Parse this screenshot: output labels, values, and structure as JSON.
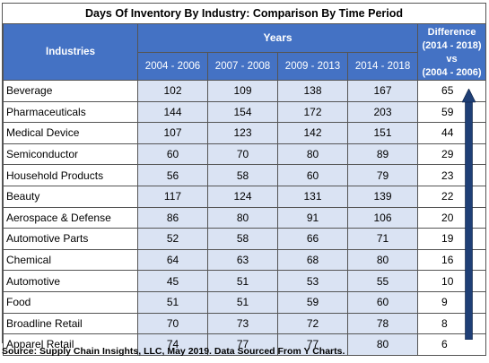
{
  "title": "Days Of Inventory By Industry: Comparison By Time Period",
  "header": {
    "industries_label": "Industries",
    "years_label": "Years",
    "periods": [
      "2004 - 2006",
      "2007 - 2008",
      "2009 - 2013",
      "2014 - 2018"
    ],
    "difference_lines": [
      "Difference",
      "(2014 - 2018)",
      "vs",
      "(2004 - 2006)"
    ]
  },
  "rows": [
    {
      "industry": "Beverage",
      "values": [
        "102",
        "109",
        "138",
        "167"
      ],
      "difference": "65"
    },
    {
      "industry": "Pharmaceuticals",
      "values": [
        "144",
        "154",
        "172",
        "203"
      ],
      "difference": "59"
    },
    {
      "industry": "Medical Device",
      "values": [
        "107",
        "123",
        "142",
        "151"
      ],
      "difference": "44"
    },
    {
      "industry": "Semiconductor",
      "values": [
        "60",
        "70",
        "80",
        "89"
      ],
      "difference": "29"
    },
    {
      "industry": "Household Products",
      "values": [
        "56",
        "58",
        "60",
        "79"
      ],
      "difference": "23"
    },
    {
      "industry": "Beauty",
      "values": [
        "117",
        "124",
        "131",
        "139"
      ],
      "difference": "22"
    },
    {
      "industry": "Aerospace & Defense",
      "values": [
        "86",
        "80",
        "91",
        "106"
      ],
      "difference": "20"
    },
    {
      "industry": "Automotive Parts",
      "values": [
        "52",
        "58",
        "66",
        "71"
      ],
      "difference": "19"
    },
    {
      "industry": "Chemical",
      "values": [
        "64",
        "63",
        "68",
        "80"
      ],
      "difference": "16"
    },
    {
      "industry": "Automotive",
      "values": [
        "45",
        "51",
        "53",
        "55"
      ],
      "difference": "10"
    },
    {
      "industry": "Food",
      "values": [
        "51",
        "51",
        "59",
        "60"
      ],
      "difference": "9"
    },
    {
      "industry": "Broadline Retail",
      "values": [
        "70",
        "73",
        "72",
        "78"
      ],
      "difference": "8"
    },
    {
      "industry": "Apparel Retail",
      "values": [
        "74",
        "77",
        "77",
        "80"
      ],
      "difference": "6"
    }
  ],
  "source": "Source: Supply Chain Insights, LLC, May 2019. Data Sourced From Y Charts.",
  "colors": {
    "header_blue": "#4472c4",
    "cell_blue": "#dae3f3",
    "arrow_blue": "#1f3f76"
  },
  "icons": {
    "trend_arrow": "up-arrow-icon"
  }
}
